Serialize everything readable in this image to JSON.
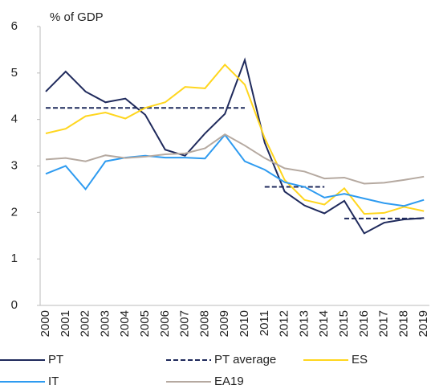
{
  "chart_data": {
    "type": "line",
    "title": "% of GDP",
    "categories": [
      "2000",
      "2001",
      "2002",
      "2003",
      "2004",
      "2005",
      "2006",
      "2007",
      "2008",
      "2009",
      "2010",
      "2011",
      "2012",
      "2013",
      "2014",
      "2015",
      "2016",
      "2017",
      "2018",
      "2019"
    ],
    "ylim": [
      0,
      6
    ],
    "yticks": [
      0,
      1,
      2,
      3,
      4,
      5,
      6
    ],
    "series": [
      {
        "name": "PT",
        "color": "#1f2a5c",
        "values": [
          4.6,
          5.03,
          4.6,
          4.37,
          4.45,
          4.1,
          3.35,
          3.22,
          3.7,
          4.12,
          5.28,
          3.5,
          2.45,
          2.15,
          1.98,
          2.25,
          1.55,
          1.78,
          1.85,
          1.88
        ]
      },
      {
        "name": "PT average",
        "color": "#1f2a5c",
        "dashed": true,
        "segments": [
          {
            "from": "2000",
            "to": "2010",
            "value": 4.25
          },
          {
            "from": "2011",
            "to": "2014",
            "value": 2.55
          },
          {
            "from": "2015",
            "to": "2019",
            "value": 1.87
          }
        ]
      },
      {
        "name": "ES",
        "color": "#ffd61e",
        "values": [
          3.7,
          3.8,
          4.07,
          4.15,
          4.02,
          4.25,
          4.37,
          4.7,
          4.67,
          5.18,
          4.75,
          3.6,
          2.7,
          2.27,
          2.17,
          2.52,
          1.97,
          1.99,
          2.12,
          2.03
        ]
      },
      {
        "name": "IT",
        "color": "#2e9bf0",
        "values": [
          2.83,
          3.0,
          2.5,
          3.1,
          3.18,
          3.22,
          3.18,
          3.18,
          3.16,
          3.67,
          3.1,
          2.92,
          2.65,
          2.55,
          2.32,
          2.4,
          2.3,
          2.2,
          2.14,
          2.27
        ]
      },
      {
        "name": "EA19",
        "color": "#b5a9a0",
        "values": [
          3.14,
          3.17,
          3.1,
          3.23,
          3.17,
          3.2,
          3.25,
          3.27,
          3.38,
          3.68,
          3.44,
          3.17,
          2.95,
          2.88,
          2.73,
          2.75,
          2.62,
          2.64,
          2.7,
          2.77
        ]
      }
    ]
  }
}
